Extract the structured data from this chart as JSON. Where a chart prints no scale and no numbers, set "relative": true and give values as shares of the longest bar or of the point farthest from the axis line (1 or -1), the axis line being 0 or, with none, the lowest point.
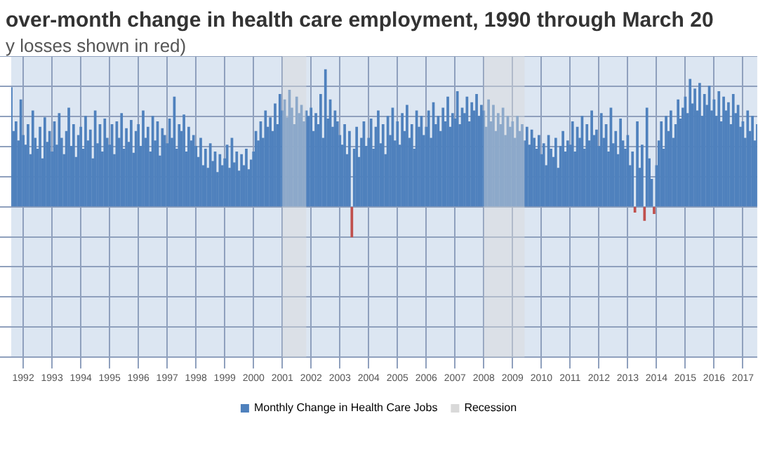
{
  "chart_data": {
    "type": "bar",
    "title": "over-month change in health care employment, 1990 through March 20",
    "subtitle": "y losses shown in red)",
    "relative": true,
    "grid": true,
    "legend": "bottom",
    "x": [
      "1991-08",
      "1991-09",
      "1991-10",
      "1991-11",
      "1991-12",
      "1992-01",
      "1992-02",
      "1992-03",
      "1992-04",
      "1992-05",
      "1992-06",
      "1992-07",
      "1992-08",
      "1992-09",
      "1992-10",
      "1992-11",
      "1992-12",
      "1993-01",
      "1993-02",
      "1993-03",
      "1993-04",
      "1993-05",
      "1993-06",
      "1993-07",
      "1993-08",
      "1993-09",
      "1993-10",
      "1993-11",
      "1993-12",
      "1994-01",
      "1994-02",
      "1994-03",
      "1994-04",
      "1994-05",
      "1994-06",
      "1994-07",
      "1994-08",
      "1994-09",
      "1994-10",
      "1994-11",
      "1994-12",
      "1995-01",
      "1995-02",
      "1995-03",
      "1995-04",
      "1995-05",
      "1995-06",
      "1995-07",
      "1995-08",
      "1995-09",
      "1995-10",
      "1995-11",
      "1995-12",
      "1996-01",
      "1996-02",
      "1996-03",
      "1996-04",
      "1996-05",
      "1996-06",
      "1996-07",
      "1996-08",
      "1996-09",
      "1996-10",
      "1996-11",
      "1996-12",
      "1997-01",
      "1997-02",
      "1997-03",
      "1997-04",
      "1997-05",
      "1997-06",
      "1997-07",
      "1997-08",
      "1997-09",
      "1997-10",
      "1997-11",
      "1997-12",
      "1998-01",
      "1998-02",
      "1998-03",
      "1998-04",
      "1998-05",
      "1998-06",
      "1998-07",
      "1998-08",
      "1998-09",
      "1998-10",
      "1998-11",
      "1998-12",
      "1999-01",
      "1999-02",
      "1999-03",
      "1999-04",
      "1999-05",
      "1999-06",
      "1999-07",
      "1999-08",
      "1999-09",
      "1999-10",
      "1999-11",
      "1999-12",
      "2000-01",
      "2000-02",
      "2000-03",
      "2000-04",
      "2000-05",
      "2000-06",
      "2000-07",
      "2000-08",
      "2000-09",
      "2000-10",
      "2000-11",
      "2000-12",
      "2001-01",
      "2001-02",
      "2001-03",
      "2001-04",
      "2001-05",
      "2001-06",
      "2001-07",
      "2001-08",
      "2001-09",
      "2001-10",
      "2001-11",
      "2001-12",
      "2002-01",
      "2002-02",
      "2002-03",
      "2002-04",
      "2002-05",
      "2002-06",
      "2002-07",
      "2002-08",
      "2002-09",
      "2002-10",
      "2002-11",
      "2002-12",
      "2003-01",
      "2003-02",
      "2003-03",
      "2003-04",
      "2003-05",
      "2003-06",
      "2003-07",
      "2003-08",
      "2003-09",
      "2003-10",
      "2003-11",
      "2003-12",
      "2004-01",
      "2004-02",
      "2004-03",
      "2004-04",
      "2004-05",
      "2004-06",
      "2004-07",
      "2004-08",
      "2004-09",
      "2004-10",
      "2004-11",
      "2004-12",
      "2005-01",
      "2005-02",
      "2005-03",
      "2005-04",
      "2005-05",
      "2005-06",
      "2005-07",
      "2005-08",
      "2005-09",
      "2005-10",
      "2005-11",
      "2005-12",
      "2006-01",
      "2006-02",
      "2006-03",
      "2006-04",
      "2006-05",
      "2006-06",
      "2006-07",
      "2006-08",
      "2006-09",
      "2006-10",
      "2006-11",
      "2006-12",
      "2007-01",
      "2007-02",
      "2007-03",
      "2007-04",
      "2007-05",
      "2007-06",
      "2007-07",
      "2007-08",
      "2007-09",
      "2007-10",
      "2007-11",
      "2007-12",
      "2008-01",
      "2008-02",
      "2008-03",
      "2008-04",
      "2008-05",
      "2008-06",
      "2008-07",
      "2008-08",
      "2008-09",
      "2008-10",
      "2008-11",
      "2008-12",
      "2009-01",
      "2009-02",
      "2009-03",
      "2009-04",
      "2009-05",
      "2009-06",
      "2009-07",
      "2009-08",
      "2009-09",
      "2009-10",
      "2009-11",
      "2009-12",
      "2010-01",
      "2010-02",
      "2010-03",
      "2010-04",
      "2010-05",
      "2010-06",
      "2010-07",
      "2010-08",
      "2010-09",
      "2010-10",
      "2010-11",
      "2010-12",
      "2011-01",
      "2011-02",
      "2011-03",
      "2011-04",
      "2011-05",
      "2011-06",
      "2011-07",
      "2011-08",
      "2011-09",
      "2011-10",
      "2011-11",
      "2011-12",
      "2012-01",
      "2012-02",
      "2012-03",
      "2012-04",
      "2012-05",
      "2012-06",
      "2012-07",
      "2012-08",
      "2012-09",
      "2012-10",
      "2012-11",
      "2012-12",
      "2013-01",
      "2013-02",
      "2013-03",
      "2013-04",
      "2013-05",
      "2013-06",
      "2013-07",
      "2013-08",
      "2013-09",
      "2013-10",
      "2013-11",
      "2013-12",
      "2014-01",
      "2014-02",
      "2014-03",
      "2014-04",
      "2014-05",
      "2014-06",
      "2014-07",
      "2014-08",
      "2014-09",
      "2014-10",
      "2014-11",
      "2014-12",
      "2015-01",
      "2015-02",
      "2015-03",
      "2015-04",
      "2015-05",
      "2015-06",
      "2015-07",
      "2015-08",
      "2015-09",
      "2015-10",
      "2015-11",
      "2015-12",
      "2016-01",
      "2016-02",
      "2016-03",
      "2016-04",
      "2016-05",
      "2016-06",
      "2016-07",
      "2016-08",
      "2016-09",
      "2016-10",
      "2016-11",
      "2016-12",
      "2017-01",
      "2017-02",
      "2017-03",
      "2017-04",
      "2017-05",
      "2017-06",
      "2017-07"
    ],
    "xlim": [
      "1991-08",
      "2017-07"
    ],
    "xticks": [
      "1992",
      "1993",
      "1994",
      "1995",
      "1996",
      "1997",
      "1998",
      "1999",
      "2000",
      "2001",
      "2002",
      "2003",
      "2004",
      "2005",
      "2006",
      "2007",
      "2008",
      "2009",
      "2010",
      "2011",
      "2012",
      "2013",
      "2014",
      "2015",
      "2016",
      "2017"
    ],
    "series": [
      {
        "name": "Monthly Change in Health Care Jobs",
        "color": "#4f81bd",
        "values": [
          0.87,
          0.55,
          0.62,
          0.48,
          0.78,
          0.52,
          0.45,
          0.6,
          0.38,
          0.7,
          0.5,
          0.42,
          0.58,
          0.35,
          0.65,
          0.47,
          0.55,
          0.4,
          0.62,
          0.45,
          0.68,
          0.5,
          0.38,
          0.55,
          0.72,
          0.44,
          0.6,
          0.36,
          0.52,
          0.58,
          0.42,
          0.66,
          0.48,
          0.56,
          0.35,
          0.7,
          0.46,
          0.6,
          0.4,
          0.64,
          0.5,
          0.45,
          0.6,
          0.38,
          0.62,
          0.5,
          0.68,
          0.42,
          0.57,
          0.47,
          0.63,
          0.39,
          0.55,
          0.6,
          0.44,
          0.7,
          0.5,
          0.58,
          0.4,
          0.66,
          0.48,
          0.62,
          0.37,
          0.57,
          0.52,
          0.46,
          0.64,
          0.5,
          0.8,
          0.42,
          0.6,
          0.55,
          0.67,
          0.4,
          0.58,
          0.48,
          0.52,
          0.44,
          0.36,
          0.5,
          0.3,
          0.42,
          0.28,
          0.46,
          0.33,
          0.4,
          0.25,
          0.38,
          0.3,
          0.35,
          0.45,
          0.28,
          0.5,
          0.32,
          0.4,
          0.26,
          0.38,
          0.3,
          0.42,
          0.27,
          0.34,
          0.4,
          0.55,
          0.48,
          0.62,
          0.5,
          0.7,
          0.58,
          0.65,
          0.55,
          0.75,
          0.6,
          0.82,
          0.7,
          0.78,
          0.65,
          0.85,
          0.72,
          0.6,
          0.8,
          0.68,
          0.74,
          0.62,
          0.7,
          0.66,
          0.72,
          0.55,
          0.68,
          0.6,
          0.82,
          0.5,
          1,
          0.64,
          0.78,
          0.58,
          0.7,
          0.62,
          0.52,
          0.45,
          0.6,
          0.38,
          0.55,
          null,
          0.42,
          0.58,
          0.36,
          0.5,
          0.62,
          0.44,
          0.5,
          0.64,
          0.42,
          0.58,
          0.7,
          0.46,
          0.6,
          0.38,
          0.66,
          0.52,
          0.72,
          0.48,
          0.62,
          0.45,
          0.68,
          0.55,
          0.74,
          0.5,
          0.6,
          0.42,
          0.7,
          0.58,
          0.66,
          0.52,
          0.58,
          0.7,
          0.5,
          0.76,
          0.6,
          0.66,
          0.55,
          0.72,
          0.62,
          0.8,
          0.58,
          0.68,
          0.64,
          0.84,
          0.6,
          0.72,
          0.68,
          0.8,
          0.62,
          0.76,
          0.7,
          0.82,
          0.66,
          0.74,
          0.7,
          0.58,
          0.78,
          0.62,
          0.74,
          0.55,
          0.68,
          0.6,
          0.72,
          0.52,
          0.66,
          0.58,
          0.62,
          0.5,
          0.66,
          0.55,
          0.6,
          0.48,
          0.58,
          0.45,
          0.56,
          0.5,
          0.42,
          0.52,
          0.38,
          0.46,
          0.3,
          0.52,
          0.42,
          0.36,
          0.5,
          0.28,
          0.44,
          0.55,
          0.4,
          0.48,
          0.45,
          0.62,
          0.4,
          0.58,
          0.5,
          0.66,
          0.42,
          0.6,
          0.48,
          0.7,
          0.52,
          0.56,
          0.44,
          0.68,
          0.5,
          0.6,
          0.4,
          0.72,
          0.46,
          0.55,
          0.38,
          0.64,
          0.48,
          0.42,
          0.52,
          0.3,
          0.4,
          null,
          0.62,
          0.28,
          0.45,
          null,
          0.72,
          0.35,
          0.2,
          null,
          0.3,
          0.48,
          0.62,
          0.42,
          0.66,
          0.55,
          0.7,
          0.5,
          0.6,
          0.78,
          0.64,
          0.72,
          0.8,
          0.68,
          0.93,
          0.75,
          0.86,
          0.7,
          0.9,
          0.66,
          0.82,
          0.74,
          0.88,
          0.7,
          0.78,
          0.66,
          0.84,
          0.62,
          0.8,
          0.7,
          0.76,
          0.6,
          0.82,
          0.68,
          0.74,
          0.58,
          0.62,
          0.5,
          0.7,
          0.55,
          0.66,
          0.48,
          0.6
        ]
      },
      {
        "color": "#c0504d",
        "x": [
          "2003-06",
          "2013-04",
          "2013-08",
          "2013-12"
        ],
        "values": [
          -0.22,
          -0.04,
          -0.1,
          -0.05
        ]
      }
    ],
    "bands": [
      {
        "axis": "x",
        "from": "2001-01",
        "to": "2001-11",
        "label": "Recession",
        "color": "#d9d9d9"
      },
      {
        "axis": "x",
        "from": "2008-01",
        "to": "2009-06",
        "color": "#d9d9d9"
      }
    ]
  }
}
